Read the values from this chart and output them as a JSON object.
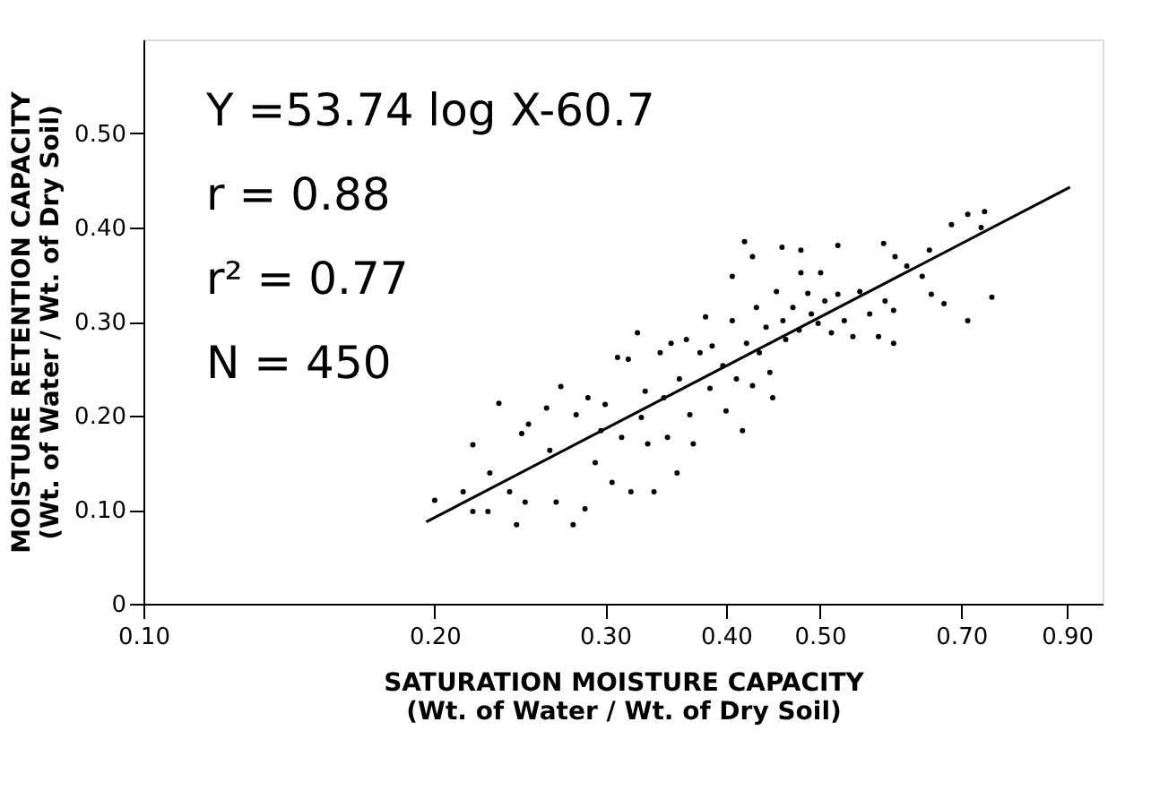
{
  "chart_data": {
    "type": "scatter",
    "xlabel": "SATURATION MOISTURE CAPACITY\n(Wt. of Water / Wt. of Dry Soil)",
    "ylabel": "MOISTURE RETENTION CAPACITY\n(Wt. of Water / Wt. of Dry Soil)",
    "annotations": [
      "Y =53.74 log X-60.7",
      "r = 0.88",
      "r² = 0.77",
      "N = 450"
    ],
    "log": "x",
    "grid": false,
    "marker": "circle",
    "xlim": [
      0.1,
      0.98
    ],
    "ylim": [
      0,
      0.6
    ],
    "xticks": [
      {
        "value": 0.1,
        "label": "0.10"
      },
      {
        "value": 0.2,
        "label": "0.20"
      },
      {
        "value": 0.3,
        "label": "0.30"
      },
      {
        "value": 0.4,
        "label": "0.40"
      },
      {
        "value": 0.5,
        "label": "0.50"
      },
      {
        "value": 0.7,
        "label": "0.70"
      },
      {
        "value": 0.9,
        "label": "0.90"
      }
    ],
    "yticks": [
      0,
      {
        "value": 0.1,
        "label": "0.10"
      },
      {
        "value": 0.2,
        "label": "0.20"
      },
      {
        "value": 0.3,
        "label": "0.30"
      },
      {
        "value": 0.4,
        "label": "0.40"
      },
      {
        "value": 0.5,
        "label": "0.50"
      }
    ],
    "series": [
      {
        "color": "#000000",
        "x": [
          0.2,
          0.214,
          0.219,
          0.219,
          0.233,
          0.227,
          0.228,
          0.239,
          0.243,
          0.246,
          0.25,
          0.248,
          0.261,
          0.263,
          0.267,
          0.27,
          0.278,
          0.28,
          0.286,
          0.288,
          0.293,
          0.297,
          0.3,
          0.305,
          0.309,
          0.312,
          0.317,
          0.319,
          0.324,
          0.327,
          0.33,
          0.332,
          0.337,
          0.342,
          0.345,
          0.348,
          0.351,
          0.356,
          0.358,
          0.364,
          0.367,
          0.37,
          0.376,
          0.381,
          0.385,
          0.387,
          0.397,
          0.4,
          0.406,
          0.41,
          0.416,
          0.42,
          0.426,
          0.43,
          0.433,
          0.44,
          0.444,
          0.447,
          0.451,
          0.458,
          0.461,
          0.469,
          0.476,
          0.486,
          0.49,
          0.498,
          0.506,
          0.514,
          0.522,
          0.53,
          0.541,
          0.55,
          0.563,
          0.575,
          0.584,
          0.596,
          0.596,
          0.652,
          0.672,
          0.711,
          0.753,
          0.418,
          0.426,
          0.457,
          0.478,
          0.478,
          0.522,
          0.406,
          0.582,
          0.598,
          0.615,
          0.649,
          0.684,
          0.711,
          0.734,
          0.74,
          0.638,
          0.501
        ],
        "values": [
          0.11,
          0.119,
          0.169,
          0.098,
          0.213,
          0.098,
          0.139,
          0.119,
          0.084,
          0.181,
          0.191,
          0.108,
          0.208,
          0.163,
          0.108,
          0.231,
          0.084,
          0.201,
          0.101,
          0.219,
          0.15,
          0.184,
          0.212,
          0.129,
          0.262,
          0.177,
          0.26,
          0.119,
          0.288,
          0.198,
          0.226,
          0.17,
          0.119,
          0.267,
          0.219,
          0.177,
          0.277,
          0.139,
          0.239,
          0.281,
          0.201,
          0.17,
          0.267,
          0.305,
          0.229,
          0.274,
          0.253,
          0.205,
          0.301,
          0.239,
          0.184,
          0.277,
          0.232,
          0.315,
          0.267,
          0.294,
          0.246,
          0.219,
          0.332,
          0.301,
          0.281,
          0.315,
          0.291,
          0.33,
          0.308,
          0.298,
          0.322,
          0.288,
          0.329,
          0.301,
          0.284,
          0.332,
          0.308,
          0.284,
          0.322,
          0.277,
          0.312,
          0.329,
          0.319,
          0.301,
          0.326,
          0.385,
          0.369,
          0.379,
          0.376,
          0.352,
          0.381,
          0.348,
          0.383,
          0.369,
          0.359,
          0.376,
          0.403,
          0.414,
          0.4,
          0.417,
          0.348,
          0.352
        ]
      },
      {
        "type": "line",
        "color": "#000000",
        "line_style": "solid",
        "marker": "none",
        "x": [
          0.196,
          0.907
        ],
        "values": [
          0.087,
          0.443
        ]
      }
    ]
  }
}
